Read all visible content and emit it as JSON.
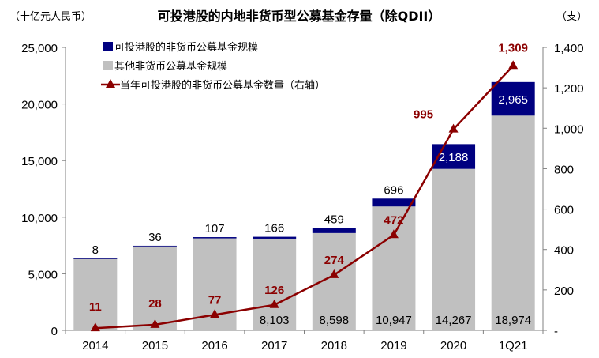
{
  "chart_data": {
    "type": "bar",
    "title": "可投港股的内地非货币型公募基金存量（除QDII）",
    "ylabel_left": "（十亿元人民币）",
    "ylabel_right": "（支）",
    "categories": [
      "2014",
      "2015",
      "2016",
      "2017",
      "2018",
      "2019",
      "2020",
      "1Q21"
    ],
    "stacked": true,
    "left_axis": {
      "ylim": [
        0,
        25000
      ],
      "ticks": [
        "0",
        "5,000",
        "10,000",
        "15,000",
        "20,000",
        "25,000"
      ],
      "tick_values": [
        0,
        5000,
        10000,
        15000,
        20000,
        25000
      ]
    },
    "right_axis": {
      "ylim": [
        0,
        1400
      ],
      "ticks": [
        "-",
        "200",
        "400",
        "600",
        "800",
        "1,000",
        "1,200",
        "1,400"
      ],
      "tick_values": [
        0,
        200,
        400,
        600,
        800,
        1000,
        1200,
        1400
      ]
    },
    "series": [
      {
        "name": "其他非货币公募基金规模",
        "kind": "bar",
        "axis": "left",
        "color": "#c0c0c0",
        "values": [
          6350,
          7440,
          8130,
          8103,
          8598,
          10947,
          14267,
          18974
        ],
        "labels": [
          "",
          "",
          "",
          "8,103",
          "8,598",
          "10,947",
          "14,267",
          "18,974"
        ]
      },
      {
        "name": "可投港股的非货币公募基金规模",
        "kind": "bar",
        "axis": "left",
        "color": "#000080",
        "values": [
          8,
          36,
          107,
          166,
          459,
          696,
          2188,
          2965
        ],
        "labels": [
          "8",
          "36",
          "107",
          "166",
          "459",
          "696",
          "2,188",
          "2,965"
        ]
      },
      {
        "name": "当年可投港股的非货币公募基金数量（右轴）",
        "kind": "line",
        "axis": "right",
        "color": "#8b0000",
        "marker": "triangle",
        "values": [
          11,
          28,
          77,
          126,
          274,
          472,
          995,
          1309
        ],
        "labels": [
          "11",
          "28",
          "77",
          "126",
          "274",
          "472",
          "995",
          "1,309"
        ]
      }
    ],
    "legend": "top-left",
    "grid": false
  }
}
